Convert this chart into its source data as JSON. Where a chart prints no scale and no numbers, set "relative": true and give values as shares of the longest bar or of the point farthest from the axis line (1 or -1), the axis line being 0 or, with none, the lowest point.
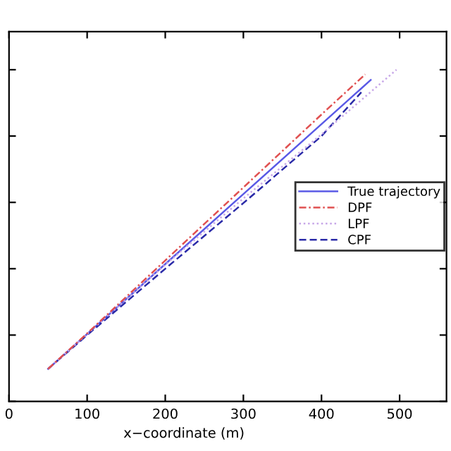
{
  "chart_data": {
    "type": "line",
    "xlabel": "x−coordinate (m)",
    "relative": true,
    "xlim": [
      0,
      560
    ],
    "xticks": [
      0,
      100,
      200,
      300,
      400,
      500
    ],
    "tick_labels": "x",
    "grid": false,
    "legend": "right",
    "series": [
      {
        "name": "True trajectory",
        "color": "#5a5ae6",
        "line_style": "solid",
        "x": [
          50,
          100,
          200,
          300,
          400,
          463
        ],
        "values": [
          0.098,
          0.203,
          0.414,
          0.625,
          0.836,
          0.969
        ]
      },
      {
        "name": "DPF",
        "color": "#e05050",
        "line_style": "dashdot",
        "x": [
          50,
          100,
          200,
          300,
          400,
          456
        ],
        "values": [
          0.098,
          0.205,
          0.425,
          0.645,
          0.865,
          0.986
        ]
      },
      {
        "name": "LPF",
        "color": "#c8a8e8",
        "line_style": "dotted",
        "x": [
          50,
          100,
          200,
          300,
          400,
          496
        ],
        "values": [
          0.098,
          0.203,
          0.412,
          0.612,
          0.805,
          1.0
        ]
      },
      {
        "name": "CPF",
        "color": "#2a2aa8",
        "line_style": "dashed",
        "x": [
          50,
          100,
          200,
          300,
          400,
          451
        ],
        "values": [
          0.098,
          0.2,
          0.4,
          0.598,
          0.8,
          0.932
        ]
      }
    ]
  }
}
